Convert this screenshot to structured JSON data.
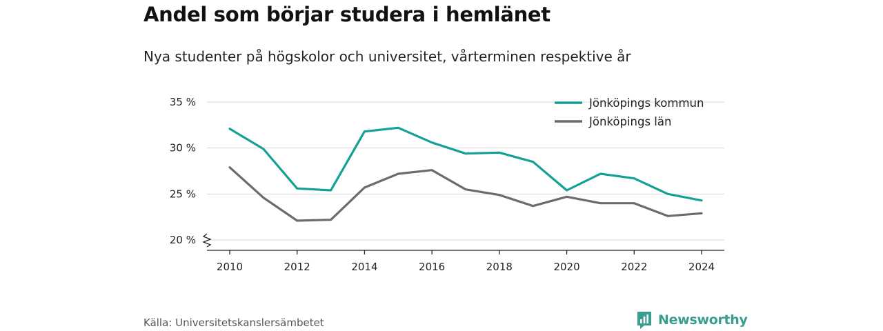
{
  "title": "Andel som börjar studera i hemlänet",
  "subtitle": "Nya studenter på högskolor och universitet, vårterminen respektive år",
  "source": "Källa: Universitetskanslersämbetet",
  "brand": {
    "name": "Newsworthy",
    "icon": "newsworthy-logo-icon",
    "color": "#3a9e8f"
  },
  "colors": {
    "kommun": "#13a095",
    "lan": "#6b6b6b",
    "grid": "#d9d9d9",
    "axis": "#222222"
  },
  "chart_data": {
    "type": "line",
    "x": [
      2010,
      2011,
      2012,
      2013,
      2014,
      2015,
      2016,
      2017,
      2018,
      2019,
      2020,
      2021,
      2022,
      2023,
      2024
    ],
    "x_ticks": [
      "2010",
      "2012",
      "2014",
      "2016",
      "2018",
      "2020",
      "2022",
      "2024"
    ],
    "y_ticks": [
      "20 %",
      "25 %",
      "30 %",
      "35 %"
    ],
    "ylim": [
      20,
      35
    ],
    "y_axis_break": true,
    "grid": true,
    "legend_position": "top-right",
    "series": [
      {
        "name": "Jönköpings kommun",
        "color": "#13a095",
        "values": [
          32.1,
          29.9,
          25.6,
          25.4,
          31.8,
          32.2,
          30.6,
          29.4,
          29.5,
          28.5,
          25.4,
          27.2,
          26.7,
          25.0,
          24.3
        ]
      },
      {
        "name": "Jönköpings län",
        "color": "#6b6b6b",
        "values": [
          27.9,
          24.6,
          22.1,
          22.2,
          25.7,
          27.2,
          27.6,
          25.5,
          24.9,
          23.7,
          24.7,
          24.0,
          24.0,
          22.6,
          22.9
        ]
      }
    ]
  }
}
